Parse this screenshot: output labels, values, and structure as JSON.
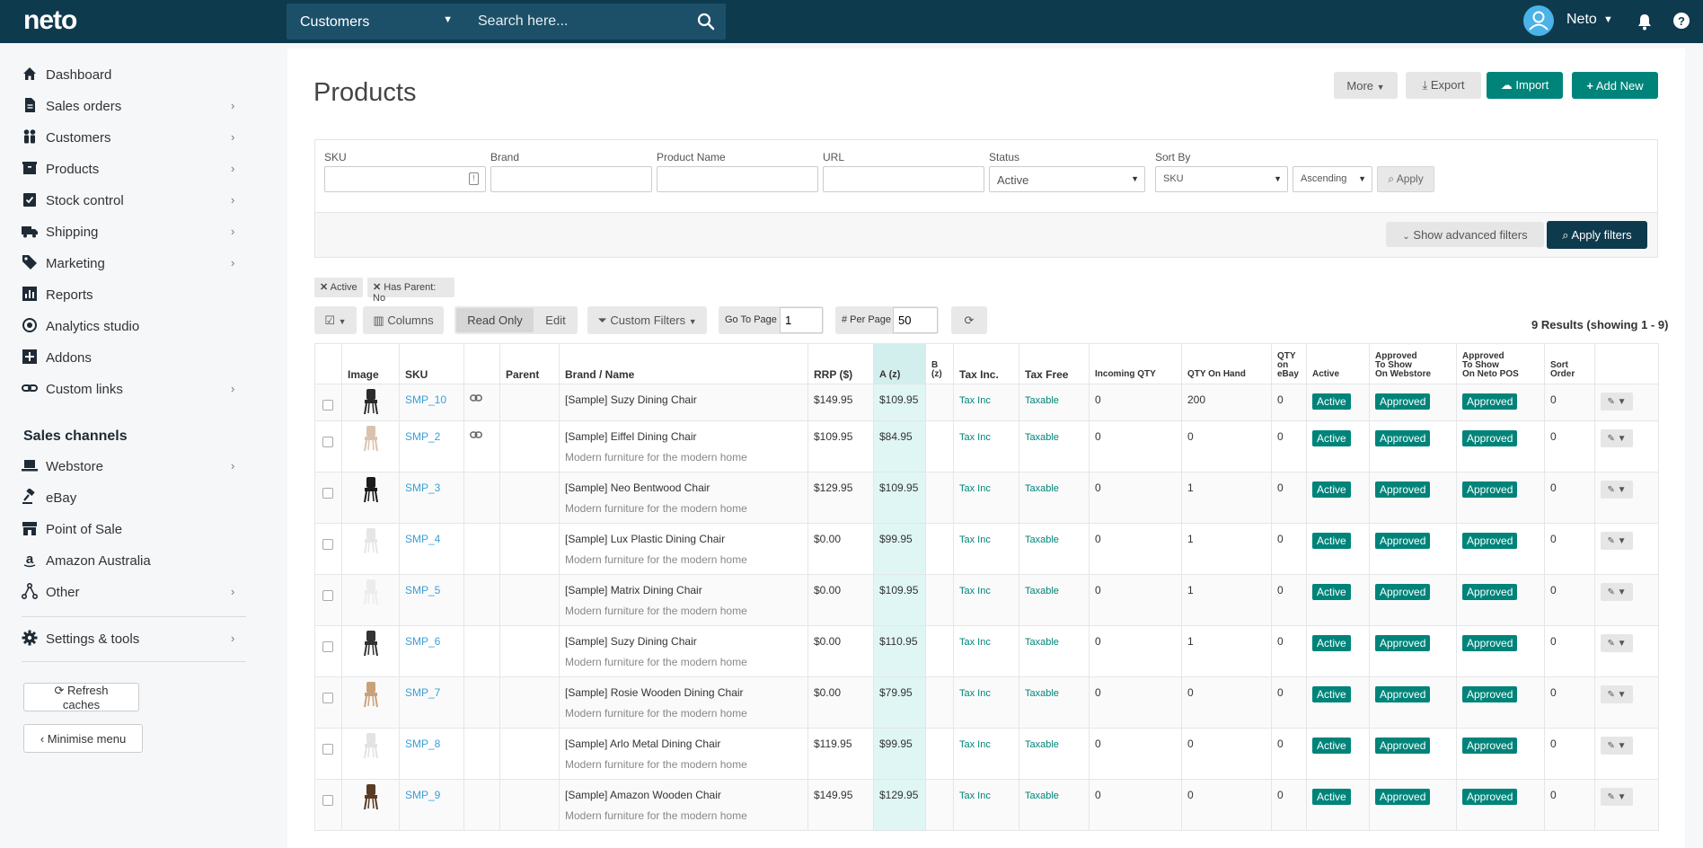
{
  "topbar": {
    "logo": "neto",
    "search_scope": "Customers",
    "search_placeholder": "Search here...",
    "user_name": "Neto"
  },
  "sidebar": {
    "items": [
      {
        "label": "Dashboard",
        "icon": "home-icon",
        "chevron": false
      },
      {
        "label": "Sales orders",
        "icon": "file-icon",
        "chevron": true
      },
      {
        "label": "Customers",
        "icon": "users-icon",
        "chevron": true
      },
      {
        "label": "Products",
        "icon": "box-icon",
        "chevron": true
      },
      {
        "label": "Stock control",
        "icon": "clipboard-icon",
        "chevron": true
      },
      {
        "label": "Shipping",
        "icon": "truck-icon",
        "chevron": true
      },
      {
        "label": "Marketing",
        "icon": "tags-icon",
        "chevron": true
      },
      {
        "label": "Reports",
        "icon": "bar-chart-icon",
        "chevron": false
      },
      {
        "label": "Analytics studio",
        "icon": "eye-icon",
        "chevron": false
      },
      {
        "label": "Addons",
        "icon": "plus-square-icon",
        "chevron": false
      },
      {
        "label": "Custom links",
        "icon": "link-icon",
        "chevron": true
      }
    ],
    "sales_channels_title": "Sales channels",
    "channels": [
      {
        "label": "Webstore",
        "icon": "laptop-icon",
        "chevron": true
      },
      {
        "label": "eBay",
        "icon": "gavel-icon",
        "chevron": false
      },
      {
        "label": "Point of Sale",
        "icon": "store-icon",
        "chevron": false
      },
      {
        "label": "Amazon Australia",
        "icon": "amazon-icon",
        "chevron": false
      },
      {
        "label": "Other",
        "icon": "share-icon",
        "chevron": true
      }
    ],
    "settings": {
      "label": "Settings & tools",
      "icon": "gear-icon",
      "chevron": true
    },
    "refresh_label": "Refresh caches",
    "minimise_label": "Minimise menu"
  },
  "header": {
    "title": "Products",
    "more_label": "More",
    "export_label": "Export",
    "import_label": "Import",
    "add_label": "Add New"
  },
  "filters": {
    "sku_label": "SKU",
    "brand_label": "Brand",
    "name_label": "Product Name",
    "url_label": "URL",
    "status_label": "Status",
    "status_value": "Active",
    "sort_label": "Sort By",
    "sort_value": "SKU",
    "order_value": "Ascending",
    "apply_label": "Apply",
    "advanced_label": "Show advanced filters",
    "apply_filters_label": "Apply filters"
  },
  "chips": [
    "Active",
    "Has Parent: No"
  ],
  "toolbar": {
    "columns_label": "Columns",
    "read_only_label": "Read Only",
    "edit_label": "Edit",
    "custom_filters_label": "Custom Filters",
    "go_to_page_label": "Go To Page",
    "page_value": "1",
    "per_page_label": "# Per Page",
    "per_page_value": "50",
    "results_text": "9 Results (showing 1 - 9)"
  },
  "table": {
    "headers": {
      "image": "Image",
      "sku": "SKU",
      "parent": "Parent",
      "brand_name": "Brand / Name",
      "rrp": "RRP ($)",
      "a": "A (z)",
      "b_line1": "B",
      "b_line2": "(z)",
      "tax_inc": "Tax Inc.",
      "tax_free": "Tax Free",
      "incoming": "Incoming QTY",
      "on_hand": "QTY On Hand",
      "ebay_1": "QTY",
      "ebay_2": "on",
      "ebay_3": "eBay",
      "active": "Active",
      "webstore_1": "Approved",
      "webstore_2": "To Show",
      "webstore_3": "On Webstore",
      "pos_1": "Approved",
      "pos_2": "To Show",
      "pos_3": "On Neto POS",
      "sort_1": "Sort",
      "sort_2": "Order"
    },
    "rows": [
      {
        "sku": "SMP_10",
        "linked": true,
        "name": "[Sample] Suzy Dining Chair",
        "subtitle": "",
        "rrp": "$149.95",
        "a": "$109.95",
        "tax_inc": "Tax Inc",
        "tax_free": "Taxable",
        "incoming": "0",
        "on_hand": "200",
        "ebay": "0",
        "active": "Active",
        "webstore": "Approved",
        "pos": "Approved",
        "sort": "0",
        "chair_color": "#2b2b2b"
      },
      {
        "sku": "SMP_2",
        "linked": true,
        "name": "[Sample] Eiffel Dining Chair",
        "subtitle": "Modern furniture for the modern home",
        "rrp": "$109.95",
        "a": "$84.95",
        "tax_inc": "Tax Inc",
        "tax_free": "Taxable",
        "incoming": "0",
        "on_hand": "0",
        "ebay": "0",
        "active": "Active",
        "webstore": "Approved",
        "pos": "Approved",
        "sort": "0",
        "chair_color": "#d9c2ad"
      },
      {
        "sku": "SMP_3",
        "linked": false,
        "name": "[Sample] Neo Bentwood Chair",
        "subtitle": "Modern furniture for the modern home",
        "rrp": "$129.95",
        "a": "$109.95",
        "tax_inc": "Tax Inc",
        "tax_free": "Taxable",
        "incoming": "0",
        "on_hand": "1",
        "ebay": "0",
        "active": "Active",
        "webstore": "Approved",
        "pos": "Approved",
        "sort": "0",
        "chair_color": "#1c1c1c"
      },
      {
        "sku": "SMP_4",
        "linked": false,
        "name": "[Sample] Lux Plastic Dining Chair",
        "subtitle": "Modern furniture for the modern home",
        "rrp": "$0.00",
        "a": "$99.95",
        "tax_inc": "Tax Inc",
        "tax_free": "Taxable",
        "incoming": "0",
        "on_hand": "1",
        "ebay": "0",
        "active": "Active",
        "webstore": "Approved",
        "pos": "Approved",
        "sort": "0",
        "chair_color": "#e6e6e6"
      },
      {
        "sku": "SMP_5",
        "linked": false,
        "name": "[Sample] Matrix Dining Chair",
        "subtitle": "Modern furniture for the modern home",
        "rrp": "$0.00",
        "a": "$109.95",
        "tax_inc": "Tax Inc",
        "tax_free": "Taxable",
        "incoming": "0",
        "on_hand": "1",
        "ebay": "0",
        "active": "Active",
        "webstore": "Approved",
        "pos": "Approved",
        "sort": "0",
        "chair_color": "#ececec"
      },
      {
        "sku": "SMP_6",
        "linked": false,
        "name": "[Sample] Suzy Dining Chair",
        "subtitle": "Modern furniture for the modern home",
        "rrp": "$0.00",
        "a": "$110.95",
        "tax_inc": "Tax Inc",
        "tax_free": "Taxable",
        "incoming": "0",
        "on_hand": "1",
        "ebay": "0",
        "active": "Active",
        "webstore": "Approved",
        "pos": "Approved",
        "sort": "0",
        "chair_color": "#333333"
      },
      {
        "sku": "SMP_7",
        "linked": false,
        "name": "[Sample] Rosie Wooden Dining Chair",
        "subtitle": "Modern furniture for the modern home",
        "rrp": "$0.00",
        "a": "$79.95",
        "tax_inc": "Tax Inc",
        "tax_free": "Taxable",
        "incoming": "0",
        "on_hand": "0",
        "ebay": "0",
        "active": "Active",
        "webstore": "Approved",
        "pos": "Approved",
        "sort": "0",
        "chair_color": "#c9a27a"
      },
      {
        "sku": "SMP_8",
        "linked": false,
        "name": "[Sample] Arlo Metal Dining Chair",
        "subtitle": "Modern furniture for the modern home",
        "rrp": "$119.95",
        "a": "$99.95",
        "tax_inc": "Tax Inc",
        "tax_free": "Taxable",
        "incoming": "0",
        "on_hand": "0",
        "ebay": "0",
        "active": "Active",
        "webstore": "Approved",
        "pos": "Approved",
        "sort": "0",
        "chair_color": "#e3e3e3"
      },
      {
        "sku": "SMP_9",
        "linked": false,
        "name": "[Sample] Amazon Wooden Chair",
        "subtitle": "Modern furniture for the modern home",
        "rrp": "$149.95",
        "a": "$129.95",
        "tax_inc": "Tax Inc",
        "tax_free": "Taxable",
        "incoming": "0",
        "on_hand": "0",
        "ebay": "0",
        "active": "Active",
        "webstore": "Approved",
        "pos": "Approved",
        "sort": "0",
        "chair_color": "#5a3b24"
      }
    ]
  },
  "colors": {
    "topbar": "#0e3a4e",
    "accent_green": "#00847a",
    "link_blue": "#3a9fd6",
    "highlight_column": "#dff6f4"
  }
}
